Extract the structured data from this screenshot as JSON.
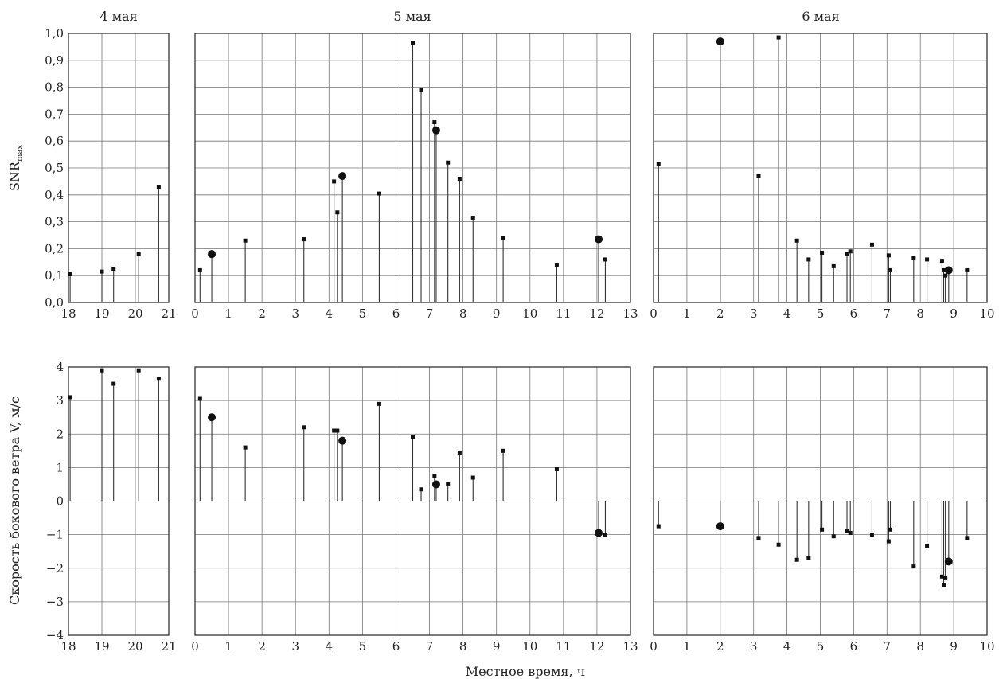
{
  "chart_data": {
    "type": "scatter",
    "panel_titles": [
      "4 мая",
      "5 мая",
      "6 мая"
    ],
    "top": {
      "ylabel": "SNR",
      "ylabel_sub": "max",
      "ylim": [
        0,
        1
      ],
      "yticks": [
        "0,0",
        "0,1",
        "0,2",
        "0,3",
        "0,4",
        "0,5",
        "0,6",
        "0,7",
        "0,8",
        "0,9",
        "1,0"
      ]
    },
    "bottom": {
      "ylabel": "Скорость бокового ветра V, м/с",
      "ylim": [
        -4,
        4
      ],
      "yticks": [
        "−4",
        "−3",
        "−2",
        "−1",
        "0",
        "1",
        "2",
        "3",
        "4"
      ]
    },
    "xlabel": "Местное время, ч",
    "panels": [
      {
        "xlim": [
          18,
          21
        ],
        "xticks": [
          "18",
          "19",
          "20",
          "21"
        ],
        "snr": [
          [
            18.05,
            0.105,
            "s"
          ],
          [
            19.0,
            0.115,
            "s"
          ],
          [
            19.35,
            0.125,
            "s"
          ],
          [
            20.1,
            0.18,
            "s"
          ],
          [
            20.7,
            0.43,
            "s"
          ]
        ],
        "wind": [
          [
            18.05,
            3.1,
            "s"
          ],
          [
            19.0,
            3.9,
            "s"
          ],
          [
            19.35,
            3.5,
            "s"
          ],
          [
            20.1,
            3.9,
            "s"
          ],
          [
            20.7,
            3.65,
            "s"
          ]
        ]
      },
      {
        "xlim": [
          0,
          13
        ],
        "xticks": [
          "0",
          "1",
          "2",
          "3",
          "4",
          "5",
          "6",
          "7",
          "8",
          "9",
          "10",
          "11",
          "12",
          "13"
        ],
        "snr": [
          [
            0.15,
            0.12,
            "s"
          ],
          [
            0.5,
            0.18,
            "c"
          ],
          [
            1.5,
            0.23,
            "s"
          ],
          [
            3.25,
            0.235,
            "s"
          ],
          [
            4.15,
            0.45,
            "s"
          ],
          [
            4.25,
            0.335,
            "s"
          ],
          [
            4.4,
            0.47,
            "c"
          ],
          [
            5.5,
            0.405,
            "s"
          ],
          [
            6.5,
            0.965,
            "s"
          ],
          [
            6.75,
            0.79,
            "s"
          ],
          [
            7.15,
            0.67,
            "s"
          ],
          [
            7.2,
            0.64,
            "c"
          ],
          [
            7.55,
            0.52,
            "s"
          ],
          [
            7.9,
            0.46,
            "s"
          ],
          [
            8.3,
            0.315,
            "s"
          ],
          [
            9.2,
            0.24,
            "s"
          ],
          [
            10.8,
            0.14,
            "s"
          ],
          [
            12.05,
            0.235,
            "c"
          ],
          [
            12.25,
            0.16,
            "s"
          ]
        ],
        "wind": [
          [
            0.15,
            3.05,
            "s"
          ],
          [
            0.5,
            2.5,
            "c"
          ],
          [
            1.5,
            1.6,
            "s"
          ],
          [
            3.25,
            2.2,
            "s"
          ],
          [
            4.15,
            2.1,
            "s"
          ],
          [
            4.25,
            2.1,
            "s"
          ],
          [
            4.4,
            1.8,
            "c"
          ],
          [
            5.5,
            2.9,
            "s"
          ],
          [
            6.5,
            1.9,
            "s"
          ],
          [
            6.75,
            0.35,
            "s"
          ],
          [
            7.15,
            0.75,
            "s"
          ],
          [
            7.2,
            0.5,
            "c"
          ],
          [
            7.55,
            0.5,
            "s"
          ],
          [
            7.9,
            1.45,
            "s"
          ],
          [
            8.3,
            0.7,
            "s"
          ],
          [
            9.2,
            1.5,
            "s"
          ],
          [
            10.8,
            0.95,
            "s"
          ],
          [
            12.05,
            -0.95,
            "c"
          ],
          [
            12.25,
            -1.0,
            "s"
          ]
        ]
      },
      {
        "xlim": [
          0,
          10
        ],
        "xticks": [
          "0",
          "1",
          "2",
          "3",
          "4",
          "5",
          "6",
          "7",
          "8",
          "9",
          "10"
        ],
        "snr": [
          [
            0.15,
            0.515,
            "s"
          ],
          [
            2.0,
            0.97,
            "c"
          ],
          [
            3.15,
            0.47,
            "s"
          ],
          [
            3.75,
            0.985,
            "s"
          ],
          [
            4.3,
            0.23,
            "s"
          ],
          [
            4.65,
            0.16,
            "s"
          ],
          [
            5.05,
            0.185,
            "s"
          ],
          [
            5.4,
            0.135,
            "s"
          ],
          [
            5.8,
            0.18,
            "s"
          ],
          [
            5.9,
            0.19,
            "s"
          ],
          [
            6.55,
            0.215,
            "s"
          ],
          [
            7.05,
            0.175,
            "s"
          ],
          [
            7.1,
            0.12,
            "s"
          ],
          [
            7.8,
            0.165,
            "s"
          ],
          [
            8.2,
            0.16,
            "s"
          ],
          [
            8.65,
            0.155,
            "s"
          ],
          [
            8.7,
            0.12,
            "s"
          ],
          [
            8.75,
            0.1,
            "s"
          ],
          [
            8.85,
            0.12,
            "c"
          ],
          [
            9.4,
            0.12,
            "s"
          ]
        ],
        "wind": [
          [
            0.15,
            -0.75,
            "s"
          ],
          [
            2.0,
            -0.75,
            "c"
          ],
          [
            3.15,
            -1.1,
            "s"
          ],
          [
            3.75,
            -1.3,
            "s"
          ],
          [
            4.3,
            -1.75,
            "s"
          ],
          [
            4.65,
            -1.7,
            "s"
          ],
          [
            5.05,
            -0.85,
            "s"
          ],
          [
            5.4,
            -1.05,
            "s"
          ],
          [
            5.8,
            -0.9,
            "s"
          ],
          [
            5.9,
            -0.95,
            "s"
          ],
          [
            6.55,
            -1.0,
            "s"
          ],
          [
            7.05,
            -1.2,
            "s"
          ],
          [
            7.1,
            -0.85,
            "s"
          ],
          [
            7.8,
            -1.95,
            "s"
          ],
          [
            8.2,
            -1.35,
            "s"
          ],
          [
            8.65,
            -2.25,
            "s"
          ],
          [
            8.7,
            -2.5,
            "s"
          ],
          [
            8.75,
            -2.3,
            "s"
          ],
          [
            8.85,
            -1.8,
            "c"
          ],
          [
            9.4,
            -1.1,
            "s"
          ]
        ]
      }
    ]
  }
}
